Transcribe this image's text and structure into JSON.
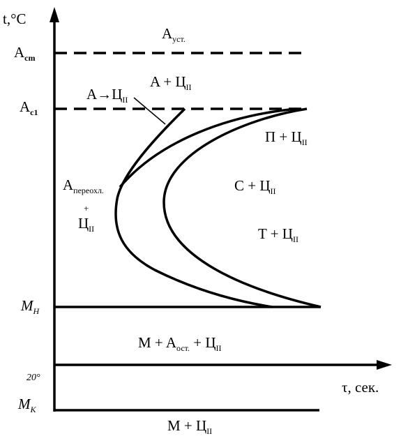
{
  "axes": {
    "y_label": "t,°C",
    "x_label": "τ, сек."
  },
  "levels": [
    {
      "main": "A",
      "sub": "cm"
    },
    {
      "main": "A",
      "sub": "c1"
    },
    {
      "main": "M",
      "sub": "Н"
    },
    {
      "main": "20°"
    },
    {
      "main": "M",
      "sub": "К"
    }
  ],
  "regions": {
    "austenite": {
      "main": "A",
      "sub": "уст."
    },
    "a_plus_c": {
      "main": "A + Ц",
      "sub": "II"
    },
    "a_to_c": {
      "main": "A→Ц",
      "sub": "II"
    },
    "pearlite": {
      "main": "П + Ц",
      "sub": "II"
    },
    "sorbite": {
      "main": "C + Ц",
      "sub": "II"
    },
    "troostite": {
      "main": "T + Ц",
      "sub": "II"
    },
    "supercooled": {
      "line1_main": "A",
      "line1_sub": "переохл.",
      "line2": "+",
      "line3_main": "Ц",
      "line3_sub": "II"
    },
    "martensite_retained": {
      "part1": "M + A",
      "sub1": "ост.",
      "part2": " + Ц",
      "sub2": "II"
    },
    "martensite": {
      "main": "M + Ц",
      "sub": "II"
    }
  }
}
